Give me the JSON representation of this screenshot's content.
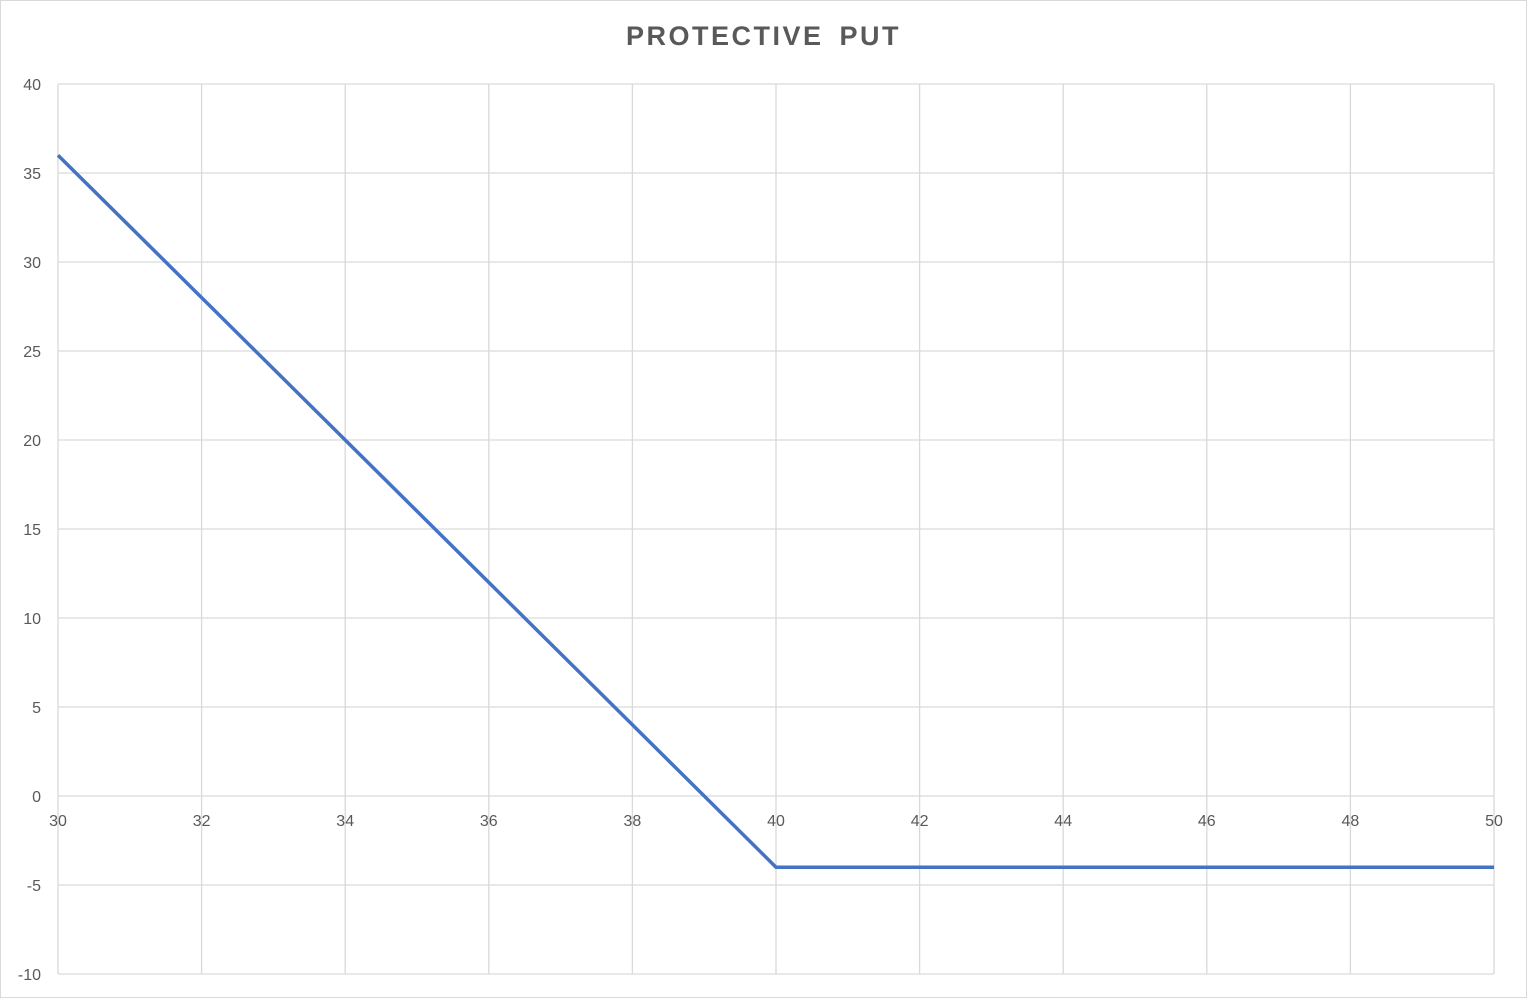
{
  "chart_data": {
    "type": "line",
    "title": "PROTECTIVE PUT",
    "xlabel": "",
    "ylabel": "",
    "xlim": [
      30,
      50
    ],
    "ylim": [
      -10,
      40
    ],
    "x_ticks": [
      30,
      32,
      34,
      36,
      38,
      40,
      42,
      44,
      46,
      48,
      50
    ],
    "y_ticks": [
      -10,
      -5,
      0,
      5,
      10,
      15,
      20,
      25,
      30,
      35,
      40
    ],
    "grid": true,
    "legend": "none",
    "series": [
      {
        "color": "#4472c4",
        "x": [
          30,
          32,
          34,
          36,
          38,
          40,
          42,
          44,
          46,
          48,
          50
        ],
        "y": [
          36,
          28,
          20,
          12,
          4,
          -4,
          -4,
          -4,
          -4,
          -4,
          -4
        ]
      }
    ]
  },
  "colors": {
    "line": "#4472c4",
    "grid": "#d9d9d9",
    "text": "#595959"
  }
}
